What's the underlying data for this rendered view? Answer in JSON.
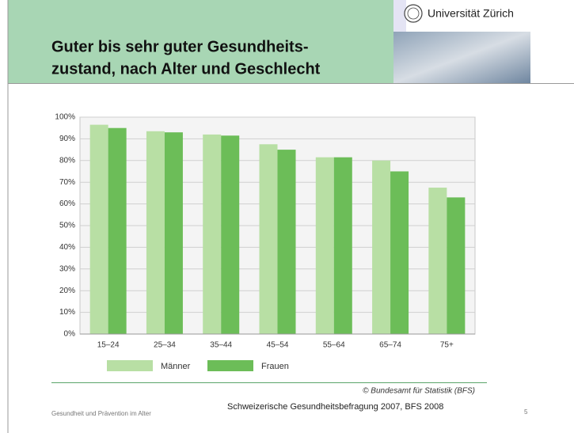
{
  "slide": {
    "title_lines": [
      "Guter bis sehr guter Gesundheits-",
      "zustand, nach Alter und Geschlecht"
    ],
    "logo_text": "Universität Zürich",
    "footer_left": "Gesundheit und Prävention im Alter",
    "footer_center": "Schweizerische Gesundheitsbefragung 2007, BFS 2008",
    "page_number": "5"
  },
  "chart_data": {
    "type": "bar",
    "source": "© Bundesamt für Statistik (BFS)",
    "categories": [
      "15–24",
      "25–34",
      "35–44",
      "45–54",
      "55–64",
      "65–74",
      "75+"
    ],
    "series": [
      {
        "name": "Männer",
        "color": "#b8dfa4",
        "values": [
          96.5,
          93.5,
          92,
          87.5,
          81.5,
          80,
          67.5
        ]
      },
      {
        "name": "Frauen",
        "color": "#6cbd58",
        "values": [
          95,
          93,
          91.5,
          85,
          81.5,
          75,
          63
        ]
      }
    ],
    "ylim": [
      0,
      100
    ],
    "yticks": [
      {
        "value": 0,
        "label": "0%"
      },
      {
        "value": 10,
        "label": "10%"
      },
      {
        "value": 20,
        "label": "20%"
      },
      {
        "value": 30,
        "label": "30%"
      },
      {
        "value": 40,
        "label": "40%"
      },
      {
        "value": 50,
        "label": "50%"
      },
      {
        "value": 60,
        "label": "60%"
      },
      {
        "value": 70,
        "label": "70%"
      },
      {
        "value": 80,
        "label": "80%"
      },
      {
        "value": 90,
        "label": "90%"
      },
      {
        "value": 100,
        "label": "100%"
      }
    ],
    "grid": true,
    "legend": "bottom"
  }
}
